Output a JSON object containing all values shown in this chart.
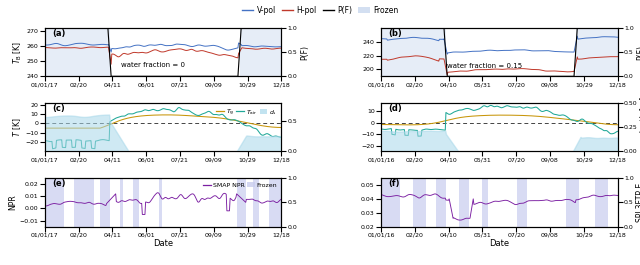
{
  "panel_labels": [
    "(a)",
    "(b)",
    "(c)",
    "(d)",
    "(e)",
    "(f)"
  ],
  "water_fraction_left": "water fraction = 0",
  "water_fraction_right": "water fraction = 0.15",
  "xlabel": "Date",
  "left_dates": [
    "01/01/17",
    "02/20",
    "04/11",
    "06/01",
    "07/21",
    "09/09",
    "10/29",
    "12/18"
  ],
  "right_dates": [
    "01/01/16",
    "02/20",
    "04/10",
    "05/31",
    "07/20",
    "09/08",
    "10/29",
    "12/18"
  ],
  "colors": {
    "vpol": "#4472C4",
    "hpol": "#C0392B",
    "pf": "#000000",
    "frozen_bg": "#C8D8EE",
    "tg": "#C8960A",
    "tair": "#20A898",
    "ds": "#A8D8EA",
    "smap_npr": "#7B1FA2",
    "smap_frozen": "#C8CCEE",
    "dashed": "#444444"
  },
  "panel_a_ylim": [
    240,
    272
  ],
  "panel_a_yticks": [
    240,
    250,
    260,
    270
  ],
  "panel_b_ylim": [
    190,
    260
  ],
  "panel_b_yticks": [
    200,
    220,
    240
  ],
  "panel_c_ylim": [
    -30,
    22
  ],
  "panel_c_yticks": [
    -20,
    -10,
    0,
    10,
    20
  ],
  "panel_d_ylim": [
    -25,
    17
  ],
  "panel_d_yticks": [
    -20,
    -10,
    0,
    10
  ],
  "panel_e_ylim": [
    -0.015,
    0.025
  ],
  "panel_e_yticks": [
    -0.01,
    0.0,
    0.01,
    0.02
  ],
  "panel_f_ylim": [
    0.02,
    0.055
  ],
  "panel_f_yticks": [
    0.02,
    0.03,
    0.04,
    0.05
  ]
}
